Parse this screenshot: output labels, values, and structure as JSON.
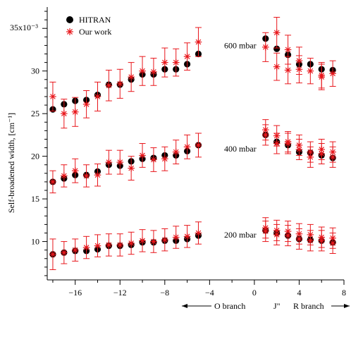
{
  "chart_data": {
    "type": "scatter",
    "title": "",
    "xlabel": "J\"",
    "ylabel": "Self-broadened width, [cm⁻¹]",
    "y_exponent_label": "35x10⁻³",
    "xlim": [
      -18.5,
      8
    ],
    "ylim": [
      5.5,
      37.5
    ],
    "x_ticks": [
      -16,
      -12,
      -8,
      -4,
      0,
      4,
      8
    ],
    "y_ticks": [
      10,
      15,
      20,
      25,
      30
    ],
    "y_top_tick": 35,
    "branch_labels": {
      "o_branch": "O branch",
      "r_branch": "R branch"
    },
    "legend": {
      "position": "top-left",
      "entries": [
        "HITRAN",
        "Our work"
      ]
    },
    "pressure_labels": [
      {
        "text": "600 mbar",
        "x": -2.7,
        "y": 33.0
      },
      {
        "text": "400 mbar",
        "x": -2.7,
        "y": 20.9
      },
      {
        "text": "200 mbar",
        "x": -2.7,
        "y": 10.8
      }
    ],
    "colors": {
      "hitran": "#000000",
      "our_work": "#e8161b",
      "axis": "#000000"
    },
    "series": [
      {
        "name": "HITRAN",
        "marker": "circle",
        "groups": [
          {
            "pressure": "600 mbar",
            "x": [
              -18,
              -17,
              -16,
              -15,
              -14,
              -13,
              -12,
              -11,
              -10,
              -9,
              -8,
              -7,
              -6,
              -5,
              1,
              2,
              3,
              4,
              5,
              6,
              7
            ],
            "y": [
              25.5,
              26.1,
              26.5,
              26.6,
              27.2,
              28.4,
              28.4,
              29.0,
              29.6,
              29.6,
              30.2,
              30.2,
              30.8,
              32.0,
              33.8,
              32.6,
              31.9,
              30.8,
              30.8,
              30.2,
              30.1
            ]
          },
          {
            "pressure": "400 mbar",
            "x": [
              -18,
              -17,
              -16,
              -15,
              -14,
              -13,
              -12,
              -11,
              -10,
              -9,
              -8,
              -7,
              -6,
              -5,
              1,
              2,
              3,
              4,
              5,
              6,
              7
            ],
            "y": [
              17.0,
              17.4,
              17.8,
              17.8,
              18.2,
              19.0,
              18.9,
              19.4,
              19.7,
              19.8,
              20.1,
              20.1,
              20.6,
              21.3,
              22.5,
              21.7,
              21.3,
              20.5,
              20.4,
              20.1,
              19.8
            ]
          },
          {
            "pressure": "200 mbar",
            "x": [
              -18,
              -17,
              -16,
              -15,
              -14,
              -13,
              -12,
              -11,
              -10,
              -9,
              -8,
              -7,
              -6,
              -5,
              1,
              2,
              3,
              4,
              5,
              6,
              7
            ],
            "y": [
              8.5,
              8.7,
              8.9,
              8.9,
              9.1,
              9.5,
              9.5,
              9.6,
              9.9,
              9.9,
              10.1,
              10.1,
              10.3,
              10.7,
              11.3,
              11.0,
              10.7,
              10.3,
              10.2,
              10.1,
              9.9
            ]
          }
        ]
      },
      {
        "name": "Our work",
        "marker": "asterisk",
        "groups": [
          {
            "pressure": "600 mbar",
            "x": [
              -18,
              -17,
              -16,
              -15,
              -14,
              -13,
              -12,
              -11,
              -10,
              -9,
              -8,
              -7,
              -6,
              -5,
              1,
              2,
              2,
              3,
              3,
              4,
              4,
              5,
              6,
              6,
              7
            ],
            "y": [
              27.0,
              25.0,
              25.2,
              26.1,
              27.0,
              28.3,
              28.5,
              29.3,
              30.0,
              29.9,
              31.0,
              31.0,
              31.7,
              33.4,
              32.8,
              34.5,
              30.5,
              32.5,
              30.1,
              31.2,
              30.2,
              30.0,
              29.5,
              29.3,
              29.7
            ],
            "err": [
              1.7,
              1.7,
              1.7,
              1.6,
              1.7,
              1.8,
              1.7,
              1.7,
              1.7,
              1.6,
              1.7,
              1.6,
              1.6,
              1.7,
              1.7,
              1.8,
              1.6,
              1.7,
              1.6,
              1.6,
              1.6,
              1.5,
              1.5,
              1.5,
              1.5
            ]
          },
          {
            "pressure": "400 mbar",
            "x": [
              -18,
              -17,
              -16,
              -15,
              -14,
              -13,
              -12,
              -11,
              -10,
              -9,
              -8,
              -7,
              -6,
              -5,
              1,
              1,
              2,
              2,
              3,
              3,
              4,
              4,
              5,
              5,
              6,
              6,
              7,
              7
            ],
            "y": [
              17.0,
              17.7,
              18.3,
              17.7,
              17.8,
              19.3,
              19.3,
              18.6,
              20.1,
              19.6,
              19.7,
              20.5,
              21.1,
              21.3,
              23.1,
              22.5,
              22.4,
              21.5,
              21.7,
              21.5,
              21.3,
              20.8,
              20.5,
              19.9,
              20.3,
              20.8,
              19.9,
              20.5
            ],
            "err": [
              1.3,
              1.3,
              1.4,
              1.3,
              1.3,
              1.4,
              1.4,
              1.4,
              1.4,
              1.4,
              1.4,
              1.4,
              1.4,
              1.4,
              1.2,
              1.2,
              1.2,
              1.2,
              1.2,
              1.2,
              1.2,
              1.2,
              1.2,
              1.2,
              1.2,
              1.2,
              1.2,
              1.2
            ]
          },
          {
            "pressure": "200 mbar",
            "x": [
              -18,
              -17,
              -16,
              -15,
              -14,
              -13,
              -12,
              -11,
              -10,
              -9,
              -8,
              -7,
              -6,
              -5,
              1,
              1,
              2,
              2,
              3,
              3,
              4,
              4,
              5,
              5,
              6,
              6,
              7,
              7
            ],
            "y": [
              8.5,
              8.7,
              9.0,
              9.3,
              9.5,
              9.6,
              9.6,
              9.8,
              10.1,
              10.0,
              10.2,
              10.5,
              10.6,
              11.0,
              11.6,
              11.2,
              11.3,
              10.8,
              11.2,
              10.7,
              10.9,
              10.3,
              10.8,
              10.1,
              10.5,
              10.1,
              10.4,
              9.8
            ],
            "err": [
              1.8,
              1.3,
              1.3,
              1.3,
              1.3,
              1.3,
              1.3,
              1.3,
              1.3,
              1.3,
              1.3,
              1.3,
              1.3,
              1.3,
              1.2,
              1.2,
              1.2,
              1.2,
              1.2,
              1.2,
              1.2,
              1.2,
              1.2,
              1.2,
              1.2,
              1.2,
              1.2,
              1.2
            ]
          }
        ]
      }
    ]
  }
}
